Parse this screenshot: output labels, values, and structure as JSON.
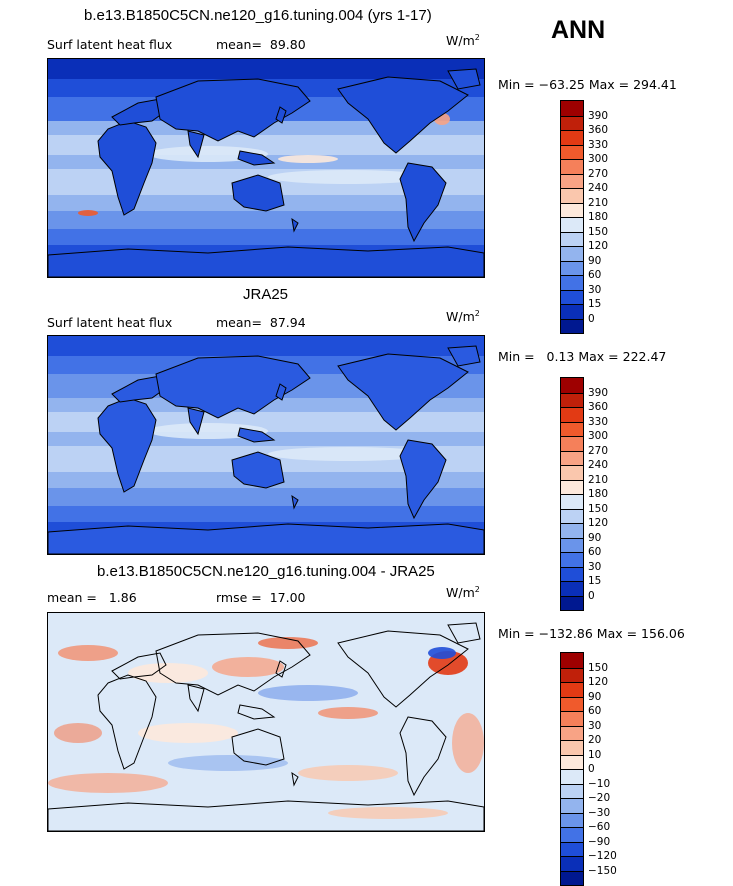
{
  "annotation": "ANN",
  "panels": [
    {
      "title": "b.e13.B1850C5CN.ne120_g16.tuning.004 (yrs 1-17)",
      "left_label": "Surf latent heat flux",
      "right_label": "mean=  89.80",
      "units": "W/m",
      "units_sup": "2",
      "minmax": "Min = −63.25 Max = 294.41",
      "colorbar_labels": [
        "390",
        "360",
        "330",
        "300",
        "270",
        "240",
        "210",
        "180",
        "150",
        "120",
        "90",
        "60",
        "30",
        "15",
        "0"
      ],
      "colorbar_colors": [
        "#9e0000",
        "#c0200a",
        "#e23a14",
        "#f05a2c",
        "#f5805a",
        "#f8a385",
        "#fac7ad",
        "#fde9dc",
        "#dce9f8",
        "#bcd2f4",
        "#93b4ee",
        "#6a94ea",
        "#4272e6",
        "#1f4ed8",
        "#0a2fb8",
        "#001890"
      ],
      "map_kind": "abs_model"
    },
    {
      "title": "JRA25",
      "left_label": "Surf latent heat flux",
      "right_label": "mean=  87.94",
      "units": "W/m",
      "units_sup": "2",
      "minmax": "Min =   0.13 Max = 222.47",
      "colorbar_labels": [
        "390",
        "360",
        "330",
        "300",
        "270",
        "240",
        "210",
        "180",
        "150",
        "120",
        "90",
        "60",
        "30",
        "15",
        "0"
      ],
      "colorbar_colors": [
        "#9e0000",
        "#c0200a",
        "#e23a14",
        "#f05a2c",
        "#f5805a",
        "#f8a385",
        "#fac7ad",
        "#fde9dc",
        "#dce9f8",
        "#bcd2f4",
        "#93b4ee",
        "#6a94ea",
        "#4272e6",
        "#1f4ed8",
        "#0a2fb8",
        "#001890"
      ],
      "map_kind": "abs_obs"
    },
    {
      "title": "b.e13.B1850C5CN.ne120_g16.tuning.004 - JRA25",
      "left_label": "mean =   1.86",
      "right_label": "rmse =  17.00",
      "units": "W/m",
      "units_sup": "2",
      "minmax": "Min = −132.86 Max = 156.06",
      "colorbar_labels": [
        "150",
        "120",
        "90",
        "60",
        "30",
        "20",
        "10",
        "0",
        "−10",
        "−20",
        "−30",
        "−60",
        "−90",
        "−120",
        "−150"
      ],
      "colorbar_colors": [
        "#9e0000",
        "#c0200a",
        "#e23a14",
        "#f05a2c",
        "#f5805a",
        "#f8a385",
        "#fac7ad",
        "#fde9dc",
        "#dce9f8",
        "#bcd2f4",
        "#93b4ee",
        "#6a94ea",
        "#4272e6",
        "#1f4ed8",
        "#0a2fb8",
        "#001890"
      ],
      "map_kind": "diff"
    }
  ]
}
